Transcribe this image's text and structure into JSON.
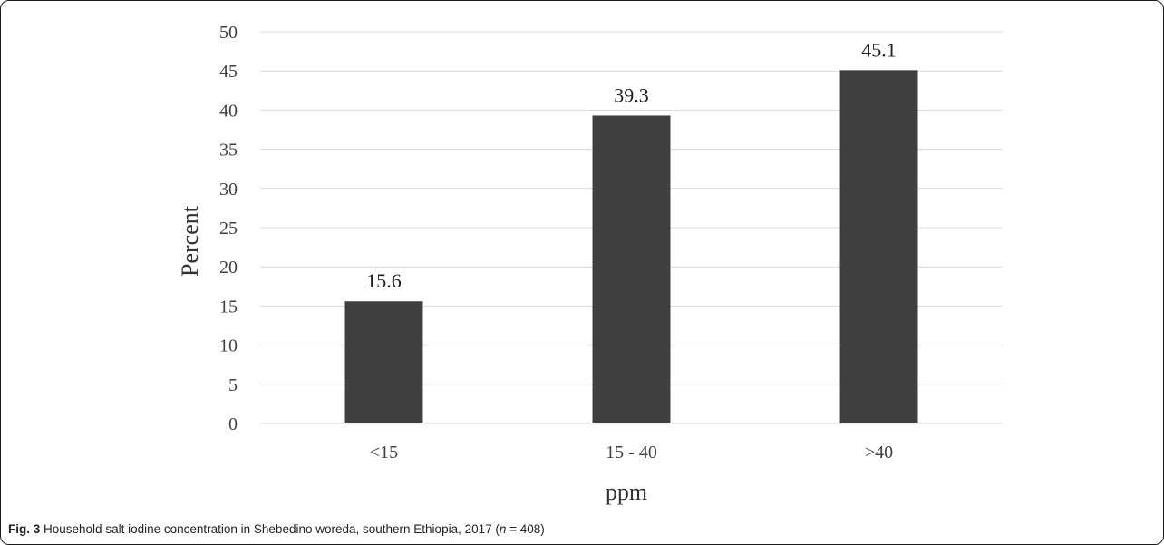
{
  "chart_data": {
    "type": "bar",
    "categories": [
      "<15",
      "15 - 40",
      ">40"
    ],
    "values": [
      15.6,
      39.3,
      45.1
    ],
    "data_labels": [
      "15.6",
      "39.3",
      "45.1"
    ],
    "xlabel": "ppm",
    "ylabel": "Percent",
    "ylim": [
      0,
      50
    ],
    "yticks": [
      0,
      5,
      10,
      15,
      20,
      25,
      30,
      35,
      40,
      45,
      50
    ],
    "grid": true,
    "bar_color": "#404040",
    "grid_color": "#d9d9d9"
  },
  "caption": {
    "label": "Fig. 3",
    "text_before": " Household salt iodine concentration in Shebedino woreda, southern Ethiopia, 2017 (",
    "italic": "n",
    "text_after": " = 408)"
  }
}
